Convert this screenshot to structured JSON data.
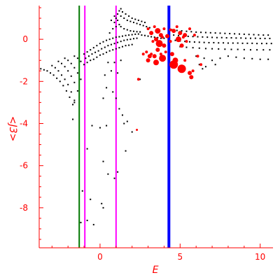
{
  "chart_data": {
    "type": "scatter",
    "xlabel": "E",
    "ylabel": "<J3>",
    "xlim": [
      -3.8,
      10.8
    ],
    "ylim": [
      -9.9,
      1.6
    ],
    "x_ticks": [
      0,
      5,
      10
    ],
    "y_ticks": [
      0,
      -2,
      -4,
      -6,
      -8
    ],
    "grid": false,
    "axis_color": "#ff0000",
    "vertical_lines": [
      {
        "x": -1.3,
        "color": "#007700"
      },
      {
        "x": -0.95,
        "color": "#ff00ff"
      },
      {
        "x": 1.0,
        "color": "#ff00ff"
      },
      {
        "x": 4.3,
        "color": "#0000ff"
      }
    ],
    "series": [
      {
        "marker_color": "#000000",
        "description": "small black points",
        "points": [
          [
            -3.7,
            -1.4
          ],
          [
            -3.5,
            -1.45
          ],
          [
            -3.3,
            -1.5
          ],
          [
            -3.1,
            -1.6
          ],
          [
            -2.9,
            -1.7
          ],
          [
            -2.7,
            -1.85
          ],
          [
            -2.5,
            -2.0
          ],
          [
            -2.3,
            -2.2
          ],
          [
            -2.1,
            -2.45
          ],
          [
            -1.9,
            -2.75
          ],
          [
            -1.7,
            -3.1
          ],
          [
            -3.0,
            -1.25
          ],
          [
            -2.8,
            -1.35
          ],
          [
            -2.6,
            -1.5
          ],
          [
            -2.4,
            -1.7
          ],
          [
            -2.2,
            -1.9
          ],
          [
            -2.0,
            -2.15
          ],
          [
            -1.8,
            -2.5
          ],
          [
            -1.6,
            -2.9
          ],
          [
            -2.6,
            -1.05
          ],
          [
            -2.4,
            -1.15
          ],
          [
            -2.2,
            -1.3
          ],
          [
            -2.0,
            -1.5
          ],
          [
            -1.8,
            -1.75
          ],
          [
            -1.6,
            -2.05
          ],
          [
            -1.4,
            -2.45
          ],
          [
            -2.2,
            -0.9
          ],
          [
            -2.0,
            -1.0
          ],
          [
            -1.8,
            -1.15
          ],
          [
            -1.6,
            -1.35
          ],
          [
            -1.4,
            -1.6
          ],
          [
            -1.2,
            -1.9
          ],
          [
            -1.6,
            -0.8
          ],
          [
            -1.4,
            -0.9
          ],
          [
            -1.2,
            -1.05
          ],
          [
            -1.0,
            -1.2
          ],
          [
            -1.0,
            -0.7
          ],
          [
            -0.8,
            -0.6
          ],
          [
            -0.6,
            -0.5
          ],
          [
            -0.4,
            -0.4
          ],
          [
            -0.2,
            -0.3
          ],
          [
            0.0,
            -0.2
          ],
          [
            0.2,
            -0.12
          ],
          [
            0.4,
            -0.05
          ],
          [
            0.6,
            0.0
          ],
          [
            0.8,
            0.05
          ],
          [
            1.0,
            0.1
          ],
          [
            1.2,
            0.12
          ],
          [
            1.4,
            0.15
          ],
          [
            1.6,
            0.18
          ],
          [
            1.8,
            0.2
          ],
          [
            2.0,
            0.22
          ],
          [
            2.2,
            0.24
          ],
          [
            2.4,
            0.25
          ],
          [
            -0.9,
            -0.9
          ],
          [
            -0.7,
            -0.8
          ],
          [
            -0.5,
            -0.7
          ],
          [
            -0.3,
            -0.62
          ],
          [
            -0.1,
            -0.55
          ],
          [
            0.1,
            -0.45
          ],
          [
            0.3,
            -0.38
          ],
          [
            0.5,
            -0.3
          ],
          [
            0.7,
            -0.25
          ],
          [
            0.9,
            -0.2
          ],
          [
            1.1,
            -0.15
          ],
          [
            1.3,
            -0.1
          ],
          [
            1.5,
            -0.05
          ],
          [
            1.7,
            -0.02
          ],
          [
            1.9,
            0.0
          ],
          [
            2.1,
            0.03
          ],
          [
            2.3,
            0.05
          ],
          [
            -0.8,
            -1.1
          ],
          [
            -0.6,
            -1.0
          ],
          [
            -0.4,
            -0.95
          ],
          [
            -0.2,
            -0.85
          ],
          [
            0.0,
            -0.75
          ],
          [
            0.2,
            -0.7
          ],
          [
            0.4,
            -0.62
          ],
          [
            0.6,
            -0.55
          ],
          [
            0.8,
            -0.5
          ],
          [
            1.0,
            -0.45
          ],
          [
            1.2,
            -0.4
          ],
          [
            1.4,
            -0.35
          ],
          [
            1.6,
            -0.3
          ],
          [
            1.8,
            -0.28
          ],
          [
            2.0,
            -0.25
          ],
          [
            0.6,
            0.3
          ],
          [
            0.8,
            0.5
          ],
          [
            0.9,
            0.8
          ],
          [
            1.0,
            1.0
          ],
          [
            1.1,
            0.9
          ],
          [
            1.2,
            0.7
          ],
          [
            1.3,
            0.6
          ],
          [
            1.5,
            0.5
          ],
          [
            1.7,
            0.45
          ],
          [
            1.9,
            0.4
          ],
          [
            2.1,
            0.38
          ],
          [
            2.3,
            0.36
          ],
          [
            2.5,
            0.35
          ],
          [
            0.7,
            0.9
          ],
          [
            0.9,
            1.1
          ],
          [
            1.1,
            1.2
          ],
          [
            1.3,
            1.1
          ],
          [
            1.5,
            1.0
          ],
          [
            1.7,
            0.9
          ],
          [
            1.9,
            0.85
          ],
          [
            2.1,
            0.8
          ],
          [
            2.3,
            0.75
          ],
          [
            2.5,
            0.7
          ],
          [
            2.7,
            0.65
          ],
          [
            2.9,
            0.6
          ],
          [
            3.1,
            0.55
          ],
          [
            1.0,
            0.6
          ],
          [
            1.2,
            1.35
          ],
          [
            1.3,
            1.45
          ],
          [
            1.4,
            1.3
          ],
          [
            1.6,
            1.2
          ],
          [
            1.8,
            1.1
          ],
          [
            2.0,
            1.0
          ],
          [
            2.2,
            0.95
          ],
          [
            2.4,
            0.9
          ],
          [
            2.6,
            0.85
          ],
          [
            2.8,
            0.8
          ],
          [
            2.6,
            0.2
          ],
          [
            2.8,
            0.18
          ],
          [
            3.0,
            0.15
          ],
          [
            3.2,
            0.12
          ],
          [
            3.4,
            0.1
          ],
          [
            3.6,
            0.08
          ],
          [
            3.8,
            0.05
          ],
          [
            4.0,
            0.05
          ],
          [
            4.5,
            0.45
          ],
          [
            4.8,
            0.42
          ],
          [
            5.1,
            0.4
          ],
          [
            5.4,
            0.38
          ],
          [
            5.7,
            0.36
          ],
          [
            6.0,
            0.34
          ],
          [
            6.3,
            0.33
          ],
          [
            6.6,
            0.32
          ],
          [
            6.9,
            0.31
          ],
          [
            7.2,
            0.3
          ],
          [
            7.5,
            0.29
          ],
          [
            7.8,
            0.28
          ],
          [
            8.1,
            0.27
          ],
          [
            8.4,
            0.26
          ],
          [
            8.7,
            0.25
          ],
          [
            9.0,
            0.24
          ],
          [
            9.3,
            0.23
          ],
          [
            9.6,
            0.22
          ],
          [
            9.9,
            0.21
          ],
          [
            10.2,
            0.2
          ],
          [
            10.5,
            0.2
          ],
          [
            4.6,
            0.2
          ],
          [
            4.9,
            0.18
          ],
          [
            5.2,
            0.15
          ],
          [
            5.5,
            0.14
          ],
          [
            5.8,
            0.13
          ],
          [
            6.1,
            0.12
          ],
          [
            6.4,
            0.11
          ],
          [
            6.7,
            0.1
          ],
          [
            7.0,
            0.09
          ],
          [
            7.3,
            0.08
          ],
          [
            7.6,
            0.08
          ],
          [
            7.9,
            0.07
          ],
          [
            8.2,
            0.07
          ],
          [
            8.5,
            0.06
          ],
          [
            8.8,
            0.06
          ],
          [
            9.1,
            0.05
          ],
          [
            9.4,
            0.05
          ],
          [
            9.7,
            0.05
          ],
          [
            10.0,
            0.04
          ],
          [
            10.3,
            0.04
          ],
          [
            10.6,
            0.04
          ],
          [
            4.7,
            -0.05
          ],
          [
            5.0,
            -0.08
          ],
          [
            5.3,
            -0.1
          ],
          [
            5.6,
            -0.12
          ],
          [
            5.9,
            -0.13
          ],
          [
            6.2,
            -0.14
          ],
          [
            6.5,
            -0.15
          ],
          [
            6.8,
            -0.16
          ],
          [
            7.1,
            -0.16
          ],
          [
            7.4,
            -0.17
          ],
          [
            7.7,
            -0.17
          ],
          [
            8.0,
            -0.18
          ],
          [
            8.3,
            -0.18
          ],
          [
            8.6,
            -0.18
          ],
          [
            8.9,
            -0.19
          ],
          [
            9.2,
            -0.19
          ],
          [
            9.5,
            -0.19
          ],
          [
            9.8,
            -0.2
          ],
          [
            10.1,
            -0.2
          ],
          [
            10.4,
            -0.2
          ],
          [
            10.7,
            -0.2
          ],
          [
            5.0,
            -0.35
          ],
          [
            5.4,
            -0.38
          ],
          [
            5.8,
            -0.4
          ],
          [
            6.2,
            -0.42
          ],
          [
            6.6,
            -0.44
          ],
          [
            7.0,
            -0.45
          ],
          [
            7.4,
            -0.46
          ],
          [
            7.8,
            -0.47
          ],
          [
            8.2,
            -0.48
          ],
          [
            8.6,
            -0.48
          ],
          [
            9.0,
            -0.49
          ],
          [
            9.4,
            -0.5
          ],
          [
            9.8,
            -0.5
          ],
          [
            10.2,
            -0.5
          ],
          [
            10.6,
            -0.5
          ],
          [
            6.0,
            -0.8
          ],
          [
            6.5,
            -0.9
          ],
          [
            7.0,
            -1.0
          ],
          [
            7.5,
            -0.9
          ],
          [
            8.0,
            -0.8
          ],
          [
            8.5,
            -0.85
          ],
          [
            9.0,
            -0.9
          ],
          [
            9.5,
            -0.92
          ],
          [
            10.0,
            -0.95
          ],
          [
            10.5,
            -0.95
          ],
          [
            6.2,
            -1.2
          ],
          [
            6.6,
            -1.3
          ],
          [
            7.2,
            -1.2
          ],
          [
            5.6,
            -1.6
          ],
          [
            6.4,
            -1.4
          ],
          [
            0.5,
            -1.1
          ],
          [
            0.9,
            -1.1
          ],
          [
            1.3,
            -1.0
          ],
          [
            0.7,
            -1.5
          ],
          [
            1.1,
            -1.6
          ],
          [
            0.3,
            -1.7
          ],
          [
            0.4,
            -2.3
          ],
          [
            0.8,
            -2.5
          ],
          [
            0.2,
            -2.8
          ],
          [
            1.0,
            -2.8
          ],
          [
            1.2,
            -3.3
          ],
          [
            1.4,
            -3.6
          ],
          [
            -0.5,
            -4.1
          ],
          [
            0.0,
            -4.2
          ],
          [
            0.4,
            -4.1
          ],
          [
            1.5,
            -4.0
          ],
          [
            2.0,
            -4.4
          ],
          [
            -0.8,
            -5.2
          ],
          [
            0.2,
            -5.8
          ],
          [
            0.5,
            -6.4
          ],
          [
            0.9,
            -6.6
          ],
          [
            1.1,
            -6.3
          ],
          [
            1.6,
            -5.3
          ],
          [
            -1.1,
            -7.2
          ],
          [
            -0.6,
            -7.6
          ],
          [
            0.1,
            -7.8
          ],
          [
            0.2,
            -8.0
          ],
          [
            -0.4,
            -8.8
          ],
          [
            -0.8,
            -8.6
          ],
          [
            -1.2,
            -8.7
          ],
          [
            2.5,
            -1.9
          ],
          [
            1.7,
            -3.9
          ],
          [
            -1.7,
            -3.8
          ],
          [
            -1.6,
            -3.0
          ]
        ]
      },
      {
        "marker_color": "#ff0000",
        "description": "red points of varying size",
        "points": [
          [
            3.0,
            0.5,
            2
          ],
          [
            3.2,
            0.3,
            3
          ],
          [
            3.4,
            0.6,
            2
          ],
          [
            3.6,
            0.4,
            4
          ],
          [
            3.8,
            0.2,
            3
          ],
          [
            4.0,
            0.5,
            2
          ],
          [
            3.5,
            0.0,
            3
          ],
          [
            3.7,
            -0.2,
            5
          ],
          [
            3.9,
            0.1,
            2
          ],
          [
            3.3,
            -0.1,
            2
          ],
          [
            3.6,
            -0.5,
            3
          ],
          [
            3.8,
            -0.7,
            2
          ],
          [
            4.0,
            -0.3,
            3
          ],
          [
            3.9,
            -0.9,
            5
          ],
          [
            3.4,
            -0.8,
            3
          ],
          [
            4.1,
            -0.6,
            2
          ],
          [
            3.5,
            -1.1,
            4
          ],
          [
            3.2,
            -0.7,
            2
          ],
          [
            4.4,
            -0.1,
            2
          ],
          [
            4.6,
            0.4,
            3
          ],
          [
            4.8,
            0.6,
            2
          ],
          [
            5.0,
            0.3,
            3
          ],
          [
            5.2,
            0.1,
            2
          ],
          [
            5.4,
            -0.1,
            2
          ],
          [
            4.9,
            0.0,
            4
          ],
          [
            5.1,
            -0.3,
            3
          ],
          [
            5.3,
            0.2,
            3
          ],
          [
            4.5,
            -0.7,
            3
          ],
          [
            4.7,
            -1.0,
            4
          ],
          [
            4.6,
            -1.2,
            6
          ],
          [
            5.0,
            -1.3,
            2
          ],
          [
            5.1,
            -1.4,
            6
          ],
          [
            5.3,
            -1.0,
            2
          ],
          [
            5.6,
            -1.6,
            3
          ],
          [
            5.7,
            -1.8,
            3
          ],
          [
            5.8,
            -1.5,
            2
          ],
          [
            3.1,
            -0.8,
            3
          ],
          [
            3.0,
            -1.0,
            3
          ],
          [
            2.7,
            -0.7,
            2
          ],
          [
            2.9,
            -0.6,
            2
          ],
          [
            5.9,
            0.2,
            2
          ],
          [
            5.6,
            0.5,
            2
          ],
          [
            6.1,
            -0.8,
            2
          ],
          [
            6.3,
            -1.2,
            2
          ],
          [
            4.4,
            0.45,
            2
          ],
          [
            4.2,
            0.15,
            3
          ],
          [
            2.4,
            -1.9,
            2
          ],
          [
            2.3,
            -4.3,
            1.5
          ]
        ]
      }
    ]
  }
}
